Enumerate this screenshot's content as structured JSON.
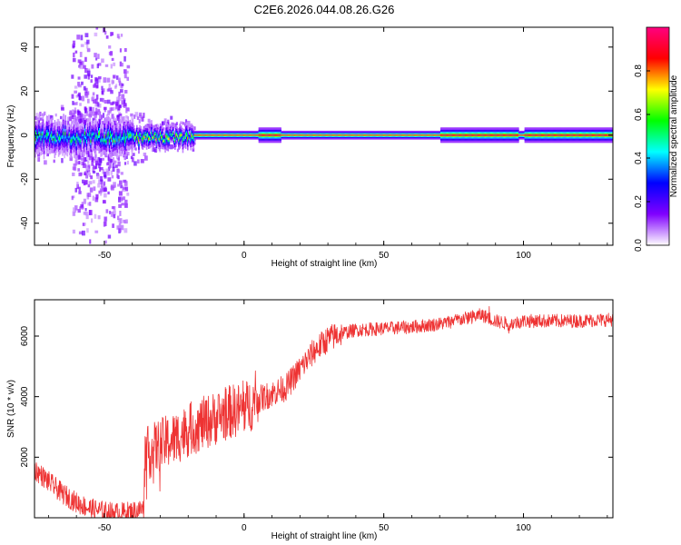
{
  "figure_title": "C2E6.2026.044.08.26.G26",
  "chart_data": [
    {
      "type": "heatmap",
      "title": "C2E6.2026.044.08.26.G26",
      "xlabel": "Height of straight line (km)",
      "ylabel": "Frequency (Hz)",
      "xlim": [
        -75,
        132
      ],
      "ylim": [
        -50,
        49
      ],
      "xticks": [
        -50,
        0,
        50,
        100
      ],
      "yticks": [
        -40,
        -20,
        0,
        20,
        40
      ],
      "description_points": {
        "ridge_center_hz": 0,
        "noisy_region_km": [
          -75,
          -18
        ],
        "broad_bursts_km": [
          -60,
          -45
        ],
        "wide_band_km": [
          [
            5,
            13
          ],
          [
            70,
            98
          ],
          [
            100,
            132
          ]
        ]
      },
      "colorbar": {
        "label": "Normalized spectral amplitude",
        "range": [
          0,
          1
        ],
        "ticks": [
          0.0,
          0.2,
          0.4,
          0.6,
          0.8
        ],
        "tick_labels": [
          "0.0",
          "0.2",
          "0.4",
          "0.6",
          "0.8"
        ],
        "colors": [
          "#ffffff",
          "#8000ff",
          "#0000ff",
          "#00ffff",
          "#00ff00",
          "#ffff00",
          "#ff0000",
          "#ff0080"
        ]
      }
    },
    {
      "type": "line",
      "xlabel": "Height of straight line (km)",
      "ylabel": "SNR (10 * v/v)",
      "xlim": [
        -75,
        132
      ],
      "ylim": [
        0,
        7200
      ],
      "xticks": [
        -50,
        0,
        50,
        100
      ],
      "yticks": [
        2000,
        4000,
        6000
      ],
      "color": "#ee3333",
      "series_trend": {
        "x": [
          -75,
          -70,
          -65,
          -60,
          -55,
          -50,
          -45,
          -40,
          -36,
          -35,
          -30,
          -25,
          -20,
          -15,
          -10,
          -5,
          0,
          5,
          10,
          15,
          20,
          25,
          30,
          35,
          40,
          50,
          60,
          70,
          80,
          85,
          90,
          95,
          100,
          110,
          120,
          132
        ],
        "y": [
          1600,
          1200,
          800,
          500,
          300,
          200,
          150,
          200,
          300,
          2100,
          2400,
          2600,
          2900,
          3100,
          3300,
          3500,
          3600,
          3900,
          4100,
          4300,
          4900,
          5500,
          5900,
          6100,
          6200,
          6250,
          6300,
          6400,
          6600,
          6700,
          6500,
          6400,
          6500,
          6500,
          6500,
          6550
        ]
      }
    }
  ]
}
